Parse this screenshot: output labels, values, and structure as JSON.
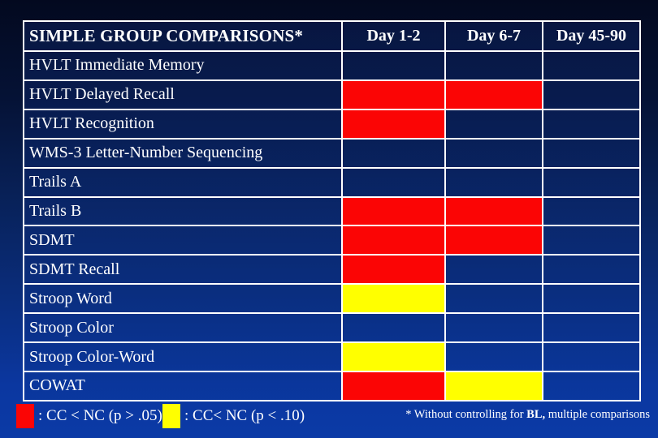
{
  "slide": {
    "title": "SIMPLE GROUP COMPARISONS*",
    "columns": [
      "Day 1-2",
      "Day 6-7",
      "Day 45-90"
    ],
    "rows": [
      {
        "label": "HVLT Immediate Memory",
        "cells": [
          "none",
          "none",
          "none"
        ]
      },
      {
        "label": "HVLT Delayed Recall",
        "cells": [
          "red",
          "red",
          "none"
        ]
      },
      {
        "label": "HVLT Recognition",
        "cells": [
          "red",
          "none",
          "none"
        ]
      },
      {
        "label": "WMS-3 Letter-Number Sequencing",
        "cells": [
          "none",
          "none",
          "none"
        ]
      },
      {
        "label": "Trails A",
        "cells": [
          "none",
          "none",
          "none"
        ]
      },
      {
        "label": "Trails B",
        "cells": [
          "red",
          "red",
          "none"
        ]
      },
      {
        "label": "SDMT",
        "cells": [
          "red",
          "red",
          "none"
        ]
      },
      {
        "label": "SDMT Recall",
        "cells": [
          "red",
          "none",
          "none"
        ]
      },
      {
        "label": "Stroop Word",
        "cells": [
          "yellow",
          "none",
          "none"
        ]
      },
      {
        "label": "Stroop Color",
        "cells": [
          "none",
          "none",
          "none"
        ]
      },
      {
        "label": "Stroop Color-Word",
        "cells": [
          "yellow",
          "none",
          "none"
        ]
      },
      {
        "label": "COWAT",
        "cells": [
          "red",
          "yellow",
          "none"
        ]
      }
    ],
    "legend": {
      "items": [
        {
          "color": "#fb0505",
          "label": ": CC < NC (p > .05)"
        },
        {
          "color": "#ffff00",
          "label": ": CC< NC (p < .10)"
        }
      ]
    },
    "footnote": {
      "prefix": "* Without controlling for ",
      "bold": "BL,",
      "suffix": " multiple comparisons"
    }
  },
  "colors": {
    "red": "#fb0505",
    "yellow": "#ffff00",
    "text": "#ffffff",
    "background_top": "#03091f",
    "background_bottom": "#0b3aa6"
  }
}
